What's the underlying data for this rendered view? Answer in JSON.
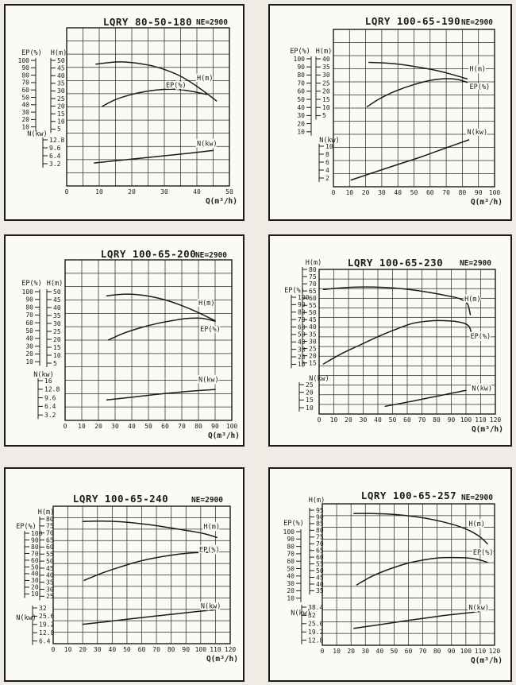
{
  "page": {
    "background": "#efece6",
    "panel_background": "#fbfaf6",
    "line_color": "#1b1b1b",
    "grid_color": "#2e2e2e"
  },
  "chart_data": [
    {
      "type": "line",
      "title": "LQRY 80-50-180",
      "speed_label": "NE=2900",
      "xlabel": "Q(m³/h)",
      "xlim": [
        0,
        50
      ],
      "x_ticks": [
        0,
        10,
        20,
        30,
        40,
        50
      ],
      "grid": "on",
      "axes": {
        "ep": {
          "label": "EP(%)",
          "ticks": [
            100,
            90,
            80,
            70,
            60,
            50,
            40,
            30,
            20,
            10
          ]
        },
        "h": {
          "label": "H(m)",
          "ticks": [
            50,
            45,
            40,
            35,
            30,
            25,
            20,
            15,
            10,
            5
          ]
        },
        "n": {
          "label": "N(kw)",
          "ticks": [
            12.8,
            9.6,
            6.4,
            3.2
          ]
        }
      },
      "series": [
        {
          "name": "H(m)",
          "axis": "h",
          "label_pos": [
            40,
            38.5
          ],
          "points": [
            [
              9,
              47.5
            ],
            [
              13,
              48.6
            ],
            [
              17,
              49
            ],
            [
              22,
              48
            ],
            [
              27,
              46
            ],
            [
              32,
              42.5
            ],
            [
              36,
              38.5
            ],
            [
              41,
              31.5
            ],
            [
              46,
              23.5
            ]
          ]
        },
        {
          "name": "EP(%)",
          "axis": "ep",
          "label_pos": [
            30.5,
            66.5
          ],
          "points": [
            [
              11,
              38
            ],
            [
              15,
              47
            ],
            [
              20,
              54
            ],
            [
              25,
              58.5
            ],
            [
              29,
              60.5
            ],
            [
              33,
              61
            ],
            [
              38,
              58.5
            ],
            [
              43,
              54
            ]
          ]
        },
        {
          "name": "N(kw)",
          "axis": "n",
          "label_pos": [
            40,
            11.3
          ],
          "points": [
            [
              8.5,
              3.5
            ],
            [
              15,
              4.4
            ],
            [
              22,
              5.3
            ],
            [
              30,
              6.4
            ],
            [
              38,
              7.5
            ],
            [
              45,
              8.5
            ]
          ]
        }
      ]
    },
    {
      "type": "line",
      "title": "LQRY 100-65-190",
      "speed_label": "NE=2900",
      "xlabel": "Q(m³/h)",
      "xlim": [
        0,
        100
      ],
      "x_ticks": [
        0,
        10,
        20,
        30,
        40,
        50,
        60,
        70,
        80,
        90,
        100
      ],
      "grid": "on",
      "axes": {
        "ep": {
          "label": "EP(%)",
          "ticks": [
            100,
            90,
            80,
            70,
            60,
            50,
            40,
            30,
            20,
            10
          ]
        },
        "h": {
          "label": "H(m)",
          "ticks": [
            40,
            35,
            30,
            25,
            20,
            15,
            10,
            5
          ]
        },
        "n": {
          "label": "N(kw)",
          "ticks": [
            10,
            8,
            6,
            4,
            2
          ]
        }
      },
      "series": [
        {
          "name": "H(m)",
          "axis": "h",
          "label_pos": [
            84.5,
            33.8
          ],
          "points": [
            [
              22,
              37.8
            ],
            [
              32,
              37.4
            ],
            [
              42,
              36.5
            ],
            [
              52,
              35
            ],
            [
              62,
              33.2
            ],
            [
              72,
              30.8
            ],
            [
              83,
              27.6
            ]
          ]
        },
        {
          "name": "EP(%)",
          "axis": "ep",
          "label_pos": [
            84.5,
            65.5
          ],
          "points": [
            [
              21,
              41
            ],
            [
              28,
              50
            ],
            [
              36,
              58
            ],
            [
              45,
              65
            ],
            [
              54,
              70.5
            ],
            [
              62,
              74
            ],
            [
              70,
              75.5
            ],
            [
              77,
              74.5
            ],
            [
              83,
              71
            ]
          ]
        },
        {
          "name": "N(kw)",
          "axis": "n",
          "label_pos": [
            83,
            13.6
          ],
          "points": [
            [
              11,
              1.5
            ],
            [
              25,
              3.4
            ],
            [
              40,
              5.4
            ],
            [
              55,
              7.4
            ],
            [
              70,
              9.6
            ],
            [
              84,
              11.6
            ]
          ]
        }
      ]
    },
    {
      "type": "line",
      "title": "LQRY 100-65-200",
      "speed_label": "NE=2900",
      "xlabel": "Q(m³/h)",
      "xlim": [
        0,
        100
      ],
      "x_ticks": [
        0,
        10,
        20,
        30,
        40,
        50,
        60,
        70,
        80,
        90,
        100
      ],
      "grid": "on",
      "axes": {
        "ep": {
          "label": "EP(%)",
          "ticks": [
            100,
            90,
            80,
            70,
            60,
            50,
            40,
            30,
            20,
            10
          ]
        },
        "h": {
          "label": "H(m)",
          "ticks": [
            50,
            45,
            40,
            35,
            30,
            25,
            20,
            15,
            10,
            5
          ]
        },
        "n": {
          "label": "N(kw)",
          "ticks": [
            16,
            12.8,
            9.6,
            6.4,
            3.2
          ]
        }
      },
      "series": [
        {
          "name": "H(m)",
          "axis": "h",
          "label_pos": [
            80,
            43
          ],
          "points": [
            [
              25,
              47.3
            ],
            [
              32,
              48.2
            ],
            [
              40,
              48.4
            ],
            [
              50,
              47.2
            ],
            [
              60,
              44.8
            ],
            [
              70,
              41.2
            ],
            [
              80,
              36.8
            ],
            [
              90,
              31.7
            ]
          ]
        },
        {
          "name": "EP(%)",
          "axis": "ep",
          "label_pos": [
            81,
            52
          ],
          "points": [
            [
              26,
              38
            ],
            [
              35,
              46.5
            ],
            [
              45,
              53.5
            ],
            [
              55,
              59
            ],
            [
              65,
              63
            ],
            [
              73,
              65.5
            ],
            [
              82,
              65.8
            ],
            [
              90,
              62
            ]
          ]
        },
        {
          "name": "N(kw)",
          "axis": "n",
          "label_pos": [
            80,
            16.5
          ],
          "points": [
            [
              25,
              8.8
            ],
            [
              40,
              9.8
            ],
            [
              55,
              10.9
            ],
            [
              70,
              11.8
            ],
            [
              82,
              12.4
            ],
            [
              90,
              12.7
            ]
          ]
        }
      ]
    },
    {
      "type": "line",
      "title": "LQRY 100-65-230",
      "speed_label": "NE=2900",
      "xlabel": "Q(m³/h)",
      "xlim": [
        0,
        120
      ],
      "x_ticks": [
        0,
        10,
        20,
        30,
        40,
        50,
        60,
        70,
        80,
        90,
        100,
        110,
        120
      ],
      "grid": "on",
      "axes": {
        "h": {
          "label": "H(m)",
          "ticks": [
            80,
            75,
            70,
            65,
            60,
            55,
            50,
            45,
            40,
            35,
            30,
            25,
            20,
            15
          ]
        },
        "ep": {
          "label": "EP(%)",
          "ticks": [
            100,
            90,
            80,
            70,
            60,
            50,
            40,
            30,
            20,
            10
          ]
        },
        "n": {
          "label": "N(kw)",
          "ticks": [
            25,
            20,
            15,
            10
          ]
        }
      },
      "series": [
        {
          "name": "H(m)",
          "axis": "h",
          "label_pos": [
            99,
            59.5
          ],
          "points": [
            [
              3,
              66
            ],
            [
              15,
              67.2
            ],
            [
              30,
              67.8
            ],
            [
              45,
              67.4
            ],
            [
              60,
              66.2
            ],
            [
              75,
              64
            ],
            [
              88,
              61.5
            ],
            [
              96,
              59.5
            ],
            [
              101,
              56
            ],
            [
              103,
              48.5
            ]
          ]
        },
        {
          "name": "EP(%)",
          "axis": "ep",
          "label_pos": [
            103,
            48
          ],
          "points": [
            [
              3,
              10.5
            ],
            [
              15,
              24
            ],
            [
              28,
              36
            ],
            [
              40,
              47
            ],
            [
              51,
              56
            ],
            [
              64,
              65
            ],
            [
              78,
              68.5
            ],
            [
              90,
              68
            ],
            [
              98,
              65.5
            ],
            [
              102,
              61
            ],
            [
              103.5,
              53
            ]
          ]
        },
        {
          "name": "N(kw)",
          "axis": "n",
          "label_pos": [
            104,
            22.8
          ],
          "points": [
            [
              45,
              10.9
            ],
            [
              58,
              13.2
            ],
            [
              72,
              15.9
            ],
            [
              85,
              18.4
            ],
            [
              95,
              20.3
            ],
            [
              100,
              21.3
            ]
          ]
        }
      ]
    },
    {
      "type": "line",
      "title": "LQRY 100-65-240",
      "speed_label": "NE=2900",
      "xlabel": "Q(m³/h)",
      "xlim": [
        0,
        120
      ],
      "x_ticks": [
        0,
        10,
        20,
        30,
        40,
        50,
        60,
        70,
        80,
        90,
        100,
        110,
        120
      ],
      "grid": "on",
      "axes": {
        "h": {
          "label": "H(m)",
          "ticks": [
            80,
            75,
            70,
            65,
            60,
            55,
            50,
            45,
            40,
            35,
            30,
            25
          ]
        },
        "ep": {
          "label": "EP(%)",
          "ticks": [
            100,
            90,
            80,
            70,
            60,
            50,
            40,
            30,
            20,
            10
          ]
        },
        "n": {
          "label": "N(kw)",
          "ticks": [
            32,
            25.6,
            19.2,
            12.8,
            6.4
          ]
        }
      },
      "series": [
        {
          "name": "H(m)",
          "axis": "h",
          "label_pos": [
            102,
            74.5
          ],
          "points": [
            [
              20,
              78.2
            ],
            [
              32,
              78.4
            ],
            [
              45,
              78
            ],
            [
              58,
              76.8
            ],
            [
              70,
              75.2
            ],
            [
              82,
              73.2
            ],
            [
              95,
              71
            ],
            [
              103,
              69.3
            ],
            [
              111,
              66.8
            ]
          ]
        },
        {
          "name": "EP(%)",
          "axis": "ep",
          "label_pos": [
            99,
            76
          ],
          "points": [
            [
              21,
              30
            ],
            [
              32,
              40
            ],
            [
              44,
              49
            ],
            [
              56,
              57
            ],
            [
              68,
              63
            ],
            [
              80,
              67.5
            ],
            [
              92,
              70.5
            ],
            [
              102,
              71.5
            ],
            [
              111,
              71.5
            ]
          ]
        },
        {
          "name": "N(kw)",
          "axis": "n",
          "label_pos": [
            100,
            33.6
          ],
          "points": [
            [
              20,
              19.3
            ],
            [
              35,
              21.2
            ],
            [
              50,
              23.2
            ],
            [
              65,
              25.2
            ],
            [
              80,
              27
            ],
            [
              95,
              28.9
            ],
            [
              111,
              30.6
            ]
          ]
        }
      ]
    },
    {
      "type": "line",
      "title": "LQRY 100-65-257",
      "speed_label": "NE=2900",
      "xlabel": "Q(m³/h)",
      "xlim": [
        0,
        120
      ],
      "x_ticks": [
        0,
        10,
        20,
        30,
        40,
        50,
        60,
        70,
        80,
        90,
        100,
        110,
        120
      ],
      "grid": "on",
      "axes": {
        "h": {
          "label": "H(m)",
          "ticks": [
            95,
            90,
            85,
            80,
            75,
            70,
            65,
            60,
            55,
            50,
            45,
            40,
            35
          ]
        },
        "ep": {
          "label": "EP(%)",
          "ticks": [
            100,
            90,
            80,
            70,
            60,
            50,
            40,
            30,
            20,
            10
          ]
        },
        "n": {
          "label": "N(kw)",
          "ticks": [
            38.4,
            32,
            25.6,
            19.2,
            12.8
          ]
        }
      },
      "series": [
        {
          "name": "H(m)",
          "axis": "h",
          "label_pos": [
            102,
            85
          ],
          "points": [
            [
              22,
              92.5
            ],
            [
              35,
              92.5
            ],
            [
              48,
              92
            ],
            [
              60,
              90.8
            ],
            [
              72,
              89
            ],
            [
              84,
              86.3
            ],
            [
              95,
              83
            ],
            [
              103,
              79.5
            ],
            [
              110,
              75
            ],
            [
              115,
              70
            ]
          ]
        },
        {
          "name": "EP(%)",
          "axis": "ep",
          "label_pos": [
            105,
            72
          ],
          "points": [
            [
              24,
              28
            ],
            [
              35,
              40
            ],
            [
              47,
              49.5
            ],
            [
              59,
              57
            ],
            [
              70,
              61.5
            ],
            [
              81,
              64.5
            ],
            [
              90,
              65
            ],
            [
              100,
              64.5
            ],
            [
              108,
              62.5
            ],
            [
              115,
              58.5
            ]
          ]
        },
        {
          "name": "N(kw)",
          "axis": "n",
          "label_pos": [
            102,
            38.2
          ],
          "points": [
            [
              22,
              22
            ],
            [
              38,
              24.5
            ],
            [
              55,
              27.3
            ],
            [
              72,
              30
            ],
            [
              88,
              32.3
            ],
            [
              100,
              33.8
            ],
            [
              109,
              34.8
            ]
          ]
        }
      ]
    }
  ]
}
